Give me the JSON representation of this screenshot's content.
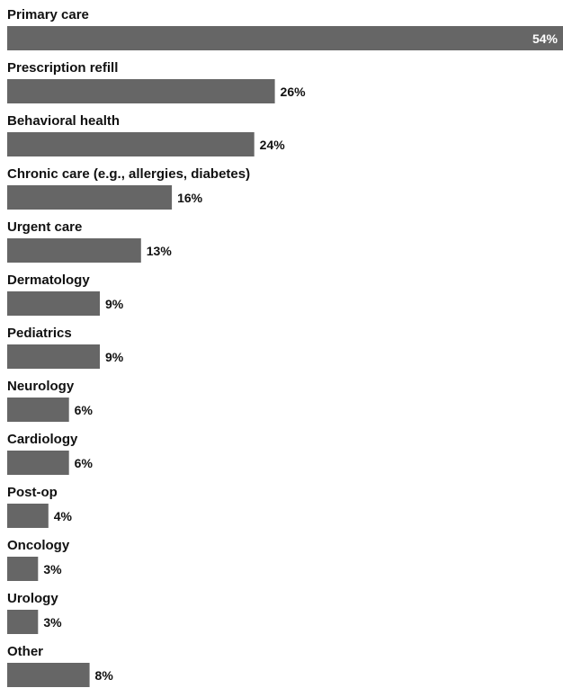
{
  "chart_data": {
    "type": "bar",
    "orientation": "horizontal",
    "categories": [
      "Primary care",
      "Prescription refill",
      "Behavioral health",
      "Chronic care (e.g., allergies, diabetes)",
      "Urgent care",
      "Dermatology",
      "Pediatrics",
      "Neurology",
      "Cardiology",
      "Post-op",
      "Oncology",
      "Urology",
      "Other"
    ],
    "values": [
      54,
      26,
      24,
      16,
      13,
      9,
      9,
      6,
      6,
      4,
      3,
      3,
      8
    ],
    "value_labels": [
      "54%",
      "26%",
      "24%",
      "16%",
      "13%",
      "9%",
      "9%",
      "6%",
      "6%",
      "4%",
      "3%",
      "3%",
      "8%"
    ],
    "unit": "%",
    "xlim": [
      0,
      54
    ],
    "grid": false,
    "legend": "none",
    "title": "",
    "xlabel": "",
    "ylabel": "",
    "colors": {
      "bar": "#666666",
      "text": "#111111",
      "inside_label": "#ffffff"
    }
  }
}
